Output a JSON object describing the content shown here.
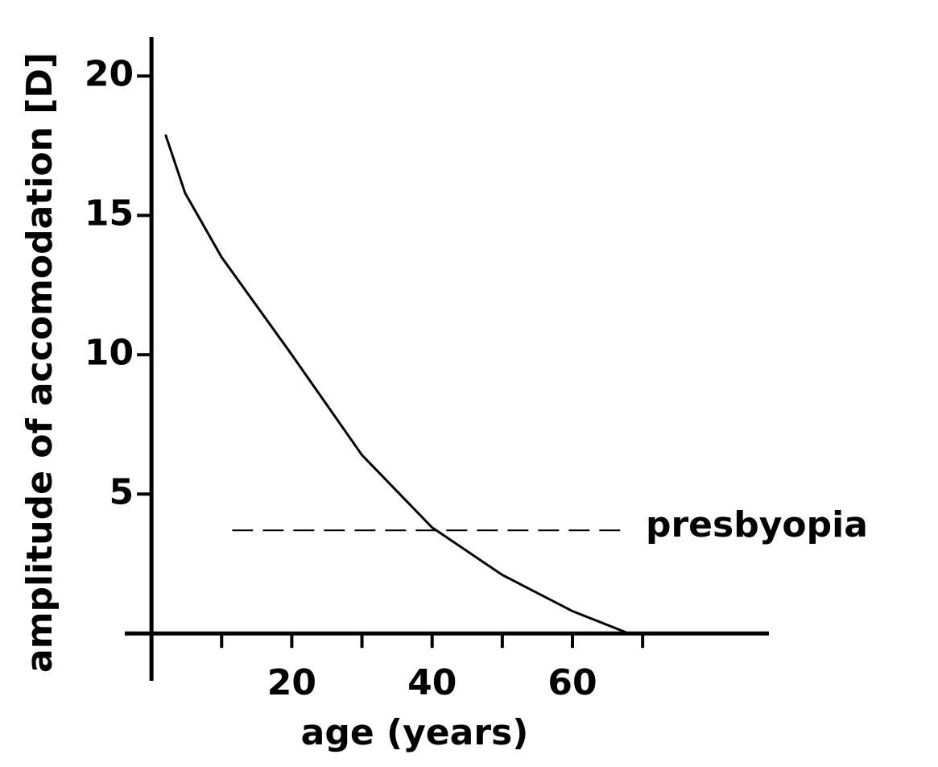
{
  "chart_data": {
    "type": "line",
    "x_label": "age (years)",
    "y_label": "amplitude of accomodation [D]",
    "x": [
      2,
      4.8,
      10,
      20,
      30,
      40,
      50,
      60,
      68
    ],
    "values": [
      17.9,
      15.8,
      13.5,
      10.0,
      6.4,
      3.8,
      2.1,
      0.8,
      0
    ],
    "color": "#000000",
    "xlim": [
      -3.8,
      88
    ],
    "ylim": [
      -1.7,
      21.4
    ],
    "xticks": [
      20,
      40,
      60
    ],
    "x_minor_ticks": [
      10,
      30,
      50,
      70
    ],
    "yticks": [
      5,
      10,
      15,
      20
    ],
    "reference_line": {
      "label": "presbyopia",
      "y": 3.7,
      "x": [
        11.5,
        67
      ]
    },
    "grid": false
  }
}
